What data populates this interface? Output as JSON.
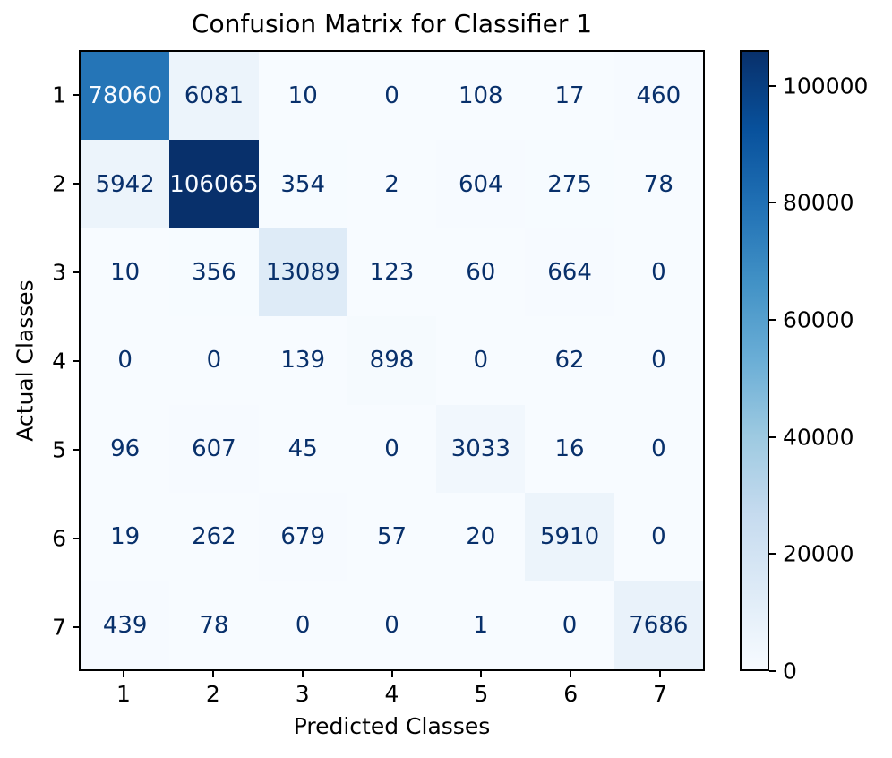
{
  "figure": {
    "background_color": "#ffffff",
    "text_color": "#000000"
  },
  "chart_data": {
    "type": "heatmap",
    "title": "Confusion Matrix for Classifier 1",
    "xlabel": "Predicted Classes",
    "ylabel": "Actual Classes",
    "x_tick_labels": [
      "1",
      "2",
      "3",
      "4",
      "5",
      "6",
      "7"
    ],
    "y_tick_labels": [
      "1",
      "2",
      "3",
      "4",
      "5",
      "6",
      "7"
    ],
    "matrix": [
      [
        78060,
        6081,
        10,
        0,
        108,
        17,
        460
      ],
      [
        5942,
        106065,
        354,
        2,
        604,
        275,
        78
      ],
      [
        10,
        356,
        13089,
        123,
        60,
        664,
        0
      ],
      [
        0,
        0,
        139,
        898,
        0,
        62,
        0
      ],
      [
        96,
        607,
        45,
        0,
        3033,
        16,
        0
      ],
      [
        19,
        262,
        679,
        57,
        20,
        5910,
        0
      ],
      [
        439,
        78,
        0,
        0,
        1,
        0,
        7686
      ]
    ],
    "vmin": 0,
    "vmax": 106065,
    "colormap": "Blues",
    "colormap_anchors": [
      "#f7fbff",
      "#deebf7",
      "#c6dbef",
      "#9ecae1",
      "#6baed6",
      "#4292c6",
      "#2171b5",
      "#08519c",
      "#08306b"
    ],
    "annot_dark_color": "#08306b",
    "annot_light_color": "#f7fbff",
    "colorbar_ticks": [
      0,
      20000,
      40000,
      60000,
      80000,
      100000
    ],
    "colorbar_position": "right",
    "grid": false
  }
}
